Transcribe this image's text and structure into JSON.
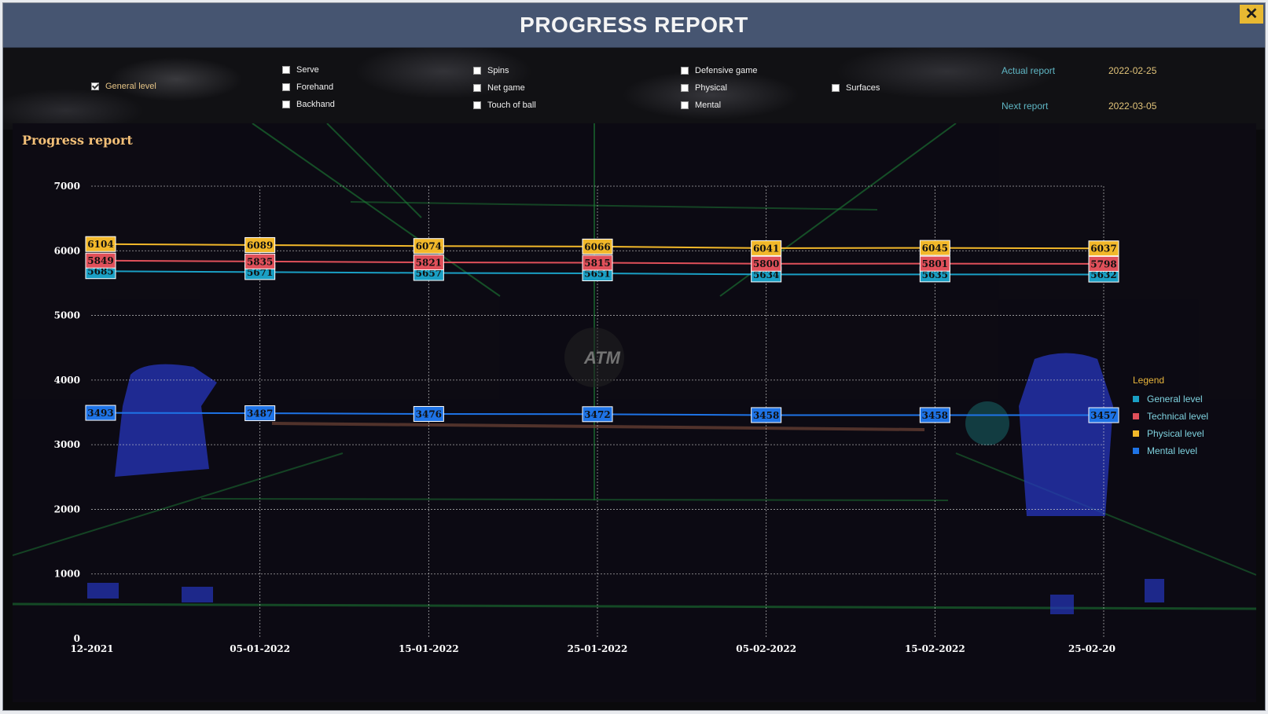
{
  "window": {
    "title": "PROGRESS REPORT",
    "close_label": "✕"
  },
  "filters": {
    "general_level": {
      "label": "General level",
      "checked": true
    },
    "serve": {
      "label": "Serve",
      "checked": false
    },
    "forehand": {
      "label": "Forehand",
      "checked": false
    },
    "backhand": {
      "label": "Backhand",
      "checked": false
    },
    "spins": {
      "label": "Spins",
      "checked": false
    },
    "net_game": {
      "label": "Net game",
      "checked": false
    },
    "touch_of_ball": {
      "label": "Touch of ball",
      "checked": false
    },
    "defensive_game": {
      "label": "Defensive game",
      "checked": false
    },
    "physical": {
      "label": "Physical",
      "checked": false
    },
    "mental": {
      "label": "Mental",
      "checked": false
    },
    "surfaces": {
      "label": "Surfaces",
      "checked": false
    }
  },
  "reports": {
    "actual_label": "Actual report",
    "actual_date": "2022-02-25",
    "next_label": "Next report",
    "next_date": "2022-03-05"
  },
  "watermark": "ATM",
  "colors": {
    "general": "#1a9fc4",
    "technical": "#e0505a",
    "physical": "#f2b82a",
    "mental": "#1e73e6"
  },
  "chart_data": {
    "type": "line",
    "title": "Progress report",
    "x": [
      "12-2021",
      "05-01-2022",
      "15-01-2022",
      "25-01-2022",
      "05-02-2022",
      "15-02-2022",
      "25-02-20"
    ],
    "ylim": [
      0,
      7000
    ],
    "yticks": [
      "0",
      "1000",
      "2000",
      "3000",
      "4000",
      "5000",
      "6000",
      "7000"
    ],
    "grid": true,
    "legend_title": "Legend",
    "legend_position": "right",
    "series": [
      {
        "name": "General level",
        "color": "#1a9fc4",
        "values": [
          5685,
          5671,
          5657,
          5651,
          5634,
          5635,
          5632
        ]
      },
      {
        "name": "Technical level",
        "color": "#e0505a",
        "values": [
          5849,
          5835,
          5821,
          5815,
          5800,
          5801,
          5798
        ]
      },
      {
        "name": "Physical level",
        "color": "#f2b82a",
        "values": [
          6104,
          6089,
          6074,
          6066,
          6041,
          6045,
          6037
        ]
      },
      {
        "name": "Mental level",
        "color": "#1e73e6",
        "values": [
          3493,
          3487,
          3476,
          3472,
          3458,
          3458,
          3457
        ]
      }
    ]
  }
}
